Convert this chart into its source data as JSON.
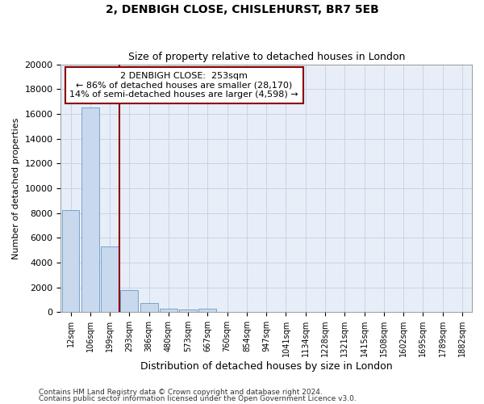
{
  "title1": "2, DENBIGH CLOSE, CHISLEHURST, BR7 5EB",
  "title2": "Size of property relative to detached houses in London",
  "xlabel": "Distribution of detached houses by size in London",
  "ylabel": "Number of detached properties",
  "categories": [
    "12sqm",
    "106sqm",
    "199sqm",
    "293sqm",
    "386sqm",
    "480sqm",
    "573sqm",
    "667sqm",
    "760sqm",
    "854sqm",
    "947sqm",
    "1041sqm",
    "1134sqm",
    "1228sqm",
    "1321sqm",
    "1415sqm",
    "1508sqm",
    "1602sqm",
    "1695sqm",
    "1789sqm",
    "1882sqm"
  ],
  "values": [
    8200,
    16500,
    5300,
    1750,
    750,
    300,
    200,
    250,
    0,
    0,
    0,
    0,
    0,
    0,
    0,
    0,
    0,
    0,
    0,
    0,
    0
  ],
  "bar_color": "#c8d8ed",
  "bar_edge_color": "#6a9ac8",
  "vline_color": "#8b0000",
  "annotation_title": "2 DENBIGH CLOSE:  253sqm",
  "annotation_line1": "← 86% of detached houses are smaller (28,170)",
  "annotation_line2": "14% of semi-detached houses are larger (4,598) →",
  "annotation_box_color": "#8b0000",
  "ylim": [
    0,
    20000
  ],
  "yticks": [
    0,
    2000,
    4000,
    6000,
    8000,
    10000,
    12000,
    14000,
    16000,
    18000,
    20000
  ],
  "footer1": "Contains HM Land Registry data © Crown copyright and database right 2024.",
  "footer2": "Contains public sector information licensed under the Open Government Licence v3.0.",
  "grid_color": "#c8d4e8",
  "background_color": "#e8eef8"
}
